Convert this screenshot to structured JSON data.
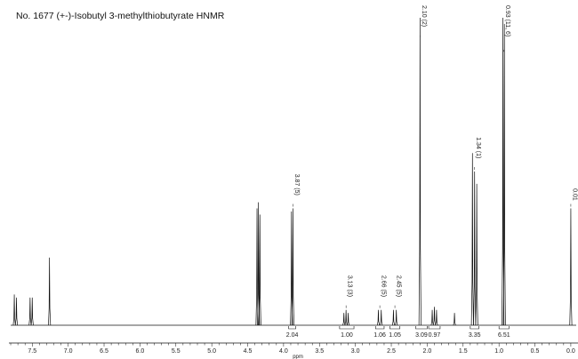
{
  "chart_data": {
    "type": "line",
    "title": "No. 1677 (+-)-Isobutyl 3-methylthiobutyrate HNMR",
    "xlabel": "ppm",
    "ylabel": "",
    "xlim": [
      7.85,
      -0.1
    ],
    "x_reversed": true,
    "x_ticks": [
      "7.5",
      "7.0",
      "6.5",
      "6.0",
      "5.5",
      "5.0",
      "4.5",
      "4.0",
      "3.5",
      "3.0",
      "2.5",
      "2.0",
      "1.5",
      "1.0",
      "0.5",
      "0.0"
    ],
    "grid": false,
    "peaks": [
      {
        "ppm": 7.75,
        "height": 0.1,
        "width": 0.008
      },
      {
        "ppm": 7.72,
        "height": 0.09,
        "width": 0.008
      },
      {
        "ppm": 7.53,
        "height": 0.09,
        "width": 0.008
      },
      {
        "ppm": 7.5,
        "height": 0.09,
        "width": 0.008
      },
      {
        "ppm": 7.26,
        "height": 0.22,
        "width": 0.006
      },
      {
        "ppm": 4.37,
        "height": 0.38,
        "width": 0.006
      },
      {
        "ppm": 4.35,
        "height": 0.4,
        "width": 0.006
      },
      {
        "ppm": 4.33,
        "height": 0.36,
        "width": 0.006
      },
      {
        "ppm": 3.89,
        "height": 0.37,
        "width": 0.006
      },
      {
        "ppm": 3.87,
        "height": 0.38,
        "width": 0.006
      },
      {
        "ppm": 3.16,
        "height": 0.04,
        "width": 0.008
      },
      {
        "ppm": 3.13,
        "height": 0.05,
        "width": 0.008
      },
      {
        "ppm": 3.1,
        "height": 0.04,
        "width": 0.008
      },
      {
        "ppm": 2.68,
        "height": 0.05,
        "width": 0.006
      },
      {
        "ppm": 2.64,
        "height": 0.05,
        "width": 0.006
      },
      {
        "ppm": 2.47,
        "height": 0.05,
        "width": 0.006
      },
      {
        "ppm": 2.43,
        "height": 0.05,
        "width": 0.006
      },
      {
        "ppm": 2.1,
        "height": 1.0,
        "width": 0.005
      },
      {
        "ppm": 1.93,
        "height": 0.05,
        "width": 0.01
      },
      {
        "ppm": 1.9,
        "height": 0.06,
        "width": 0.01
      },
      {
        "ppm": 1.87,
        "height": 0.05,
        "width": 0.01
      },
      {
        "ppm": 1.62,
        "height": 0.04,
        "width": 0.006
      },
      {
        "ppm": 1.37,
        "height": 0.56,
        "width": 0.005
      },
      {
        "ppm": 1.34,
        "height": 0.5,
        "width": 0.005
      },
      {
        "ppm": 1.31,
        "height": 0.46,
        "width": 0.005
      },
      {
        "ppm": 0.945,
        "height": 1.0,
        "width": 0.005
      },
      {
        "ppm": 0.925,
        "height": 0.98,
        "width": 0.005
      },
      {
        "ppm": 0.0,
        "height": 0.38,
        "width": 0.005
      }
    ],
    "peak_labels": [
      {
        "ppm": 3.87,
        "text": "3.87 (5)"
      },
      {
        "ppm": 3.13,
        "text": "3.13 (3)"
      },
      {
        "ppm": 2.66,
        "text": "2.66 (5)"
      },
      {
        "ppm": 2.45,
        "text": "2.45 (5)"
      },
      {
        "ppm": 2.1,
        "text": "2.10 (2)"
      },
      {
        "ppm": 1.34,
        "text": "1.34 (1)"
      },
      {
        "ppm": 0.935,
        "text": "0.93 (11, 6)"
      },
      {
        "ppm": 0.0,
        "text": "0.01"
      }
    ],
    "integrations": [
      {
        "from": 3.93,
        "to": 3.83,
        "value": "2.04"
      },
      {
        "from": 3.22,
        "to": 3.02,
        "value": "1.00"
      },
      {
        "from": 2.72,
        "to": 2.6,
        "value": "1.06"
      },
      {
        "from": 2.52,
        "to": 2.38,
        "value": "1.05"
      },
      {
        "from": 2.16,
        "to": 2.0,
        "value": "3.09"
      },
      {
        "from": 1.98,
        "to": 1.82,
        "value": "0.97"
      },
      {
        "from": 1.4,
        "to": 1.28,
        "value": "3.35"
      },
      {
        "from": 1.0,
        "to": 0.86,
        "value": "6.51"
      }
    ]
  }
}
